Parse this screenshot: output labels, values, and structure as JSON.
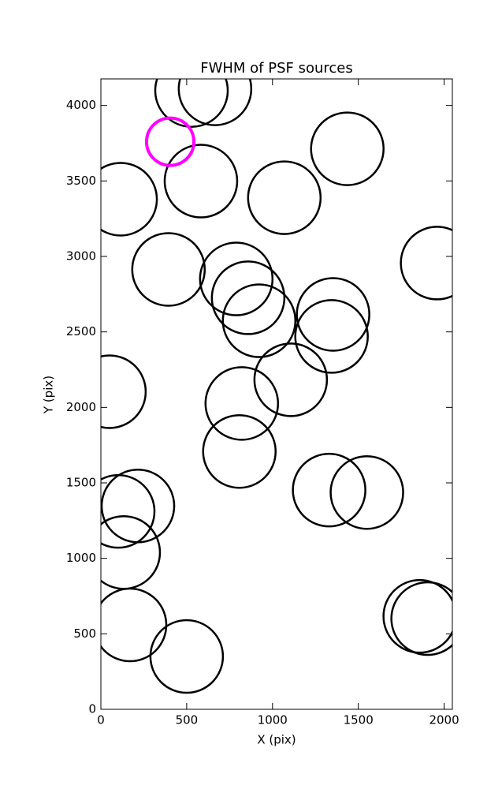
{
  "chart_data": {
    "type": "scatter",
    "title": "FWHM of PSF sources",
    "x_label": "X (pix)",
    "y_label": "Y (pix)",
    "xlim": [
      0,
      2048
    ],
    "ylim": [
      0,
      4176
    ],
    "xticks": [
      0,
      500,
      1000,
      1500,
      2000
    ],
    "yticks": [
      0,
      500,
      1000,
      1500,
      2000,
      2500,
      3000,
      3500,
      4000
    ],
    "series": [
      {
        "color": "#000000",
        "x": [
          528,
          665,
          583,
          115,
          1436,
          1069,
          1959,
          394,
          789,
          858,
          922,
          1353,
          1344,
          1106,
          50,
          821,
          807,
          1330,
          1550,
          216,
          101,
          133,
          170,
          500,
          1858,
          1904
        ],
        "values": [
          4099,
          4110,
          3499,
          3379,
          3713,
          3389,
          2956,
          2914,
          2851,
          2726,
          2574,
          2616,
          2470,
          2183,
          2104,
          2026,
          1708,
          1452,
          1436,
          1347,
          1311,
          1039,
          559,
          350,
          616,
          601
        ]
      },
      {
        "color": "#ff00ff",
        "x": [
          404
        ],
        "values": [
          3760
        ]
      }
    ]
  }
}
